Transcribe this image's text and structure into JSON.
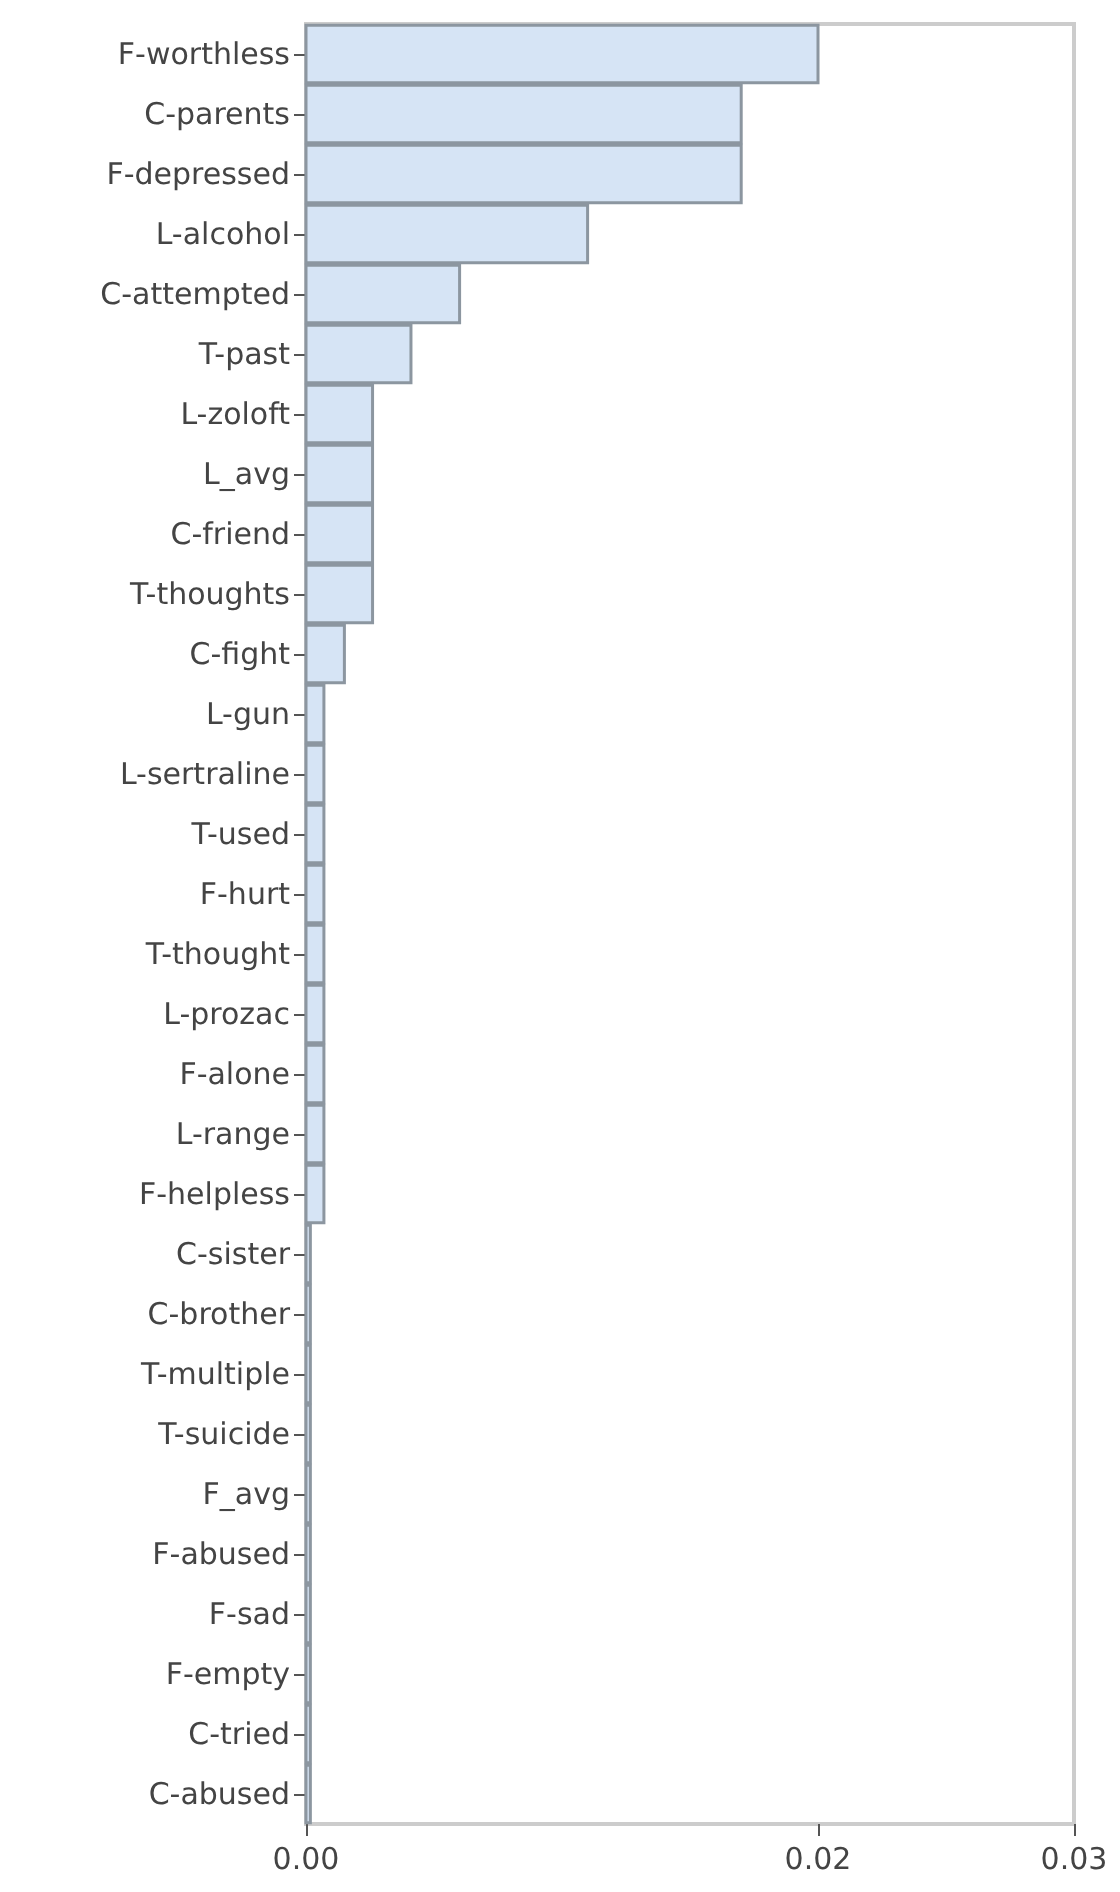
{
  "chart_data": {
    "type": "bar",
    "orientation": "horizontal",
    "categories": [
      "F-worthless",
      "C-parents",
      "F-depressed",
      "L-alcohol",
      "C-attempted",
      "T-past",
      "L-zoloft",
      "L_avg",
      "C-friend",
      "T-thoughts",
      "C-fight",
      "L-gun",
      "L-sertraline",
      "T-used",
      "F-hurt",
      "T-thought",
      "L-prozac",
      "F-alone",
      "L-range",
      "F-helpless",
      "C-sister",
      "C-brother",
      "T-multiple",
      "T-suicide",
      "F_avg",
      "F-abused",
      "F-sad",
      "F-empty",
      "C-tried",
      "C-abused"
    ],
    "values": [
      0.02,
      0.017,
      0.017,
      0.011,
      0.006,
      0.0041,
      0.0026,
      0.0026,
      0.0026,
      0.0026,
      0.0015,
      0.0007,
      0.0007,
      0.0007,
      0.0007,
      0.0007,
      0.0007,
      0.0007,
      0.0007,
      0.0007,
      0.00017,
      0.00017,
      0.00017,
      0.00017,
      0.00017,
      0.00017,
      0.00017,
      0.00017,
      0.00017,
      0.00017
    ],
    "color": "#d6e4f5",
    "xlim": [
      0,
      0.03
    ],
    "xticks": [
      {
        "value": 0,
        "label": "0.00"
      },
      0.02,
      0.03
    ],
    "grid": false
  }
}
